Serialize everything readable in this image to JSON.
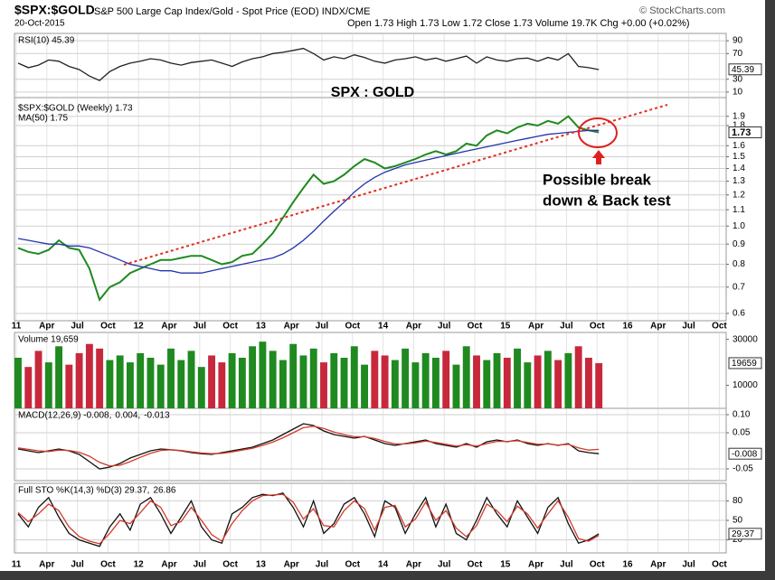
{
  "header": {
    "symbol": "$SPX:$GOLD",
    "description": "S&P 500 Large Cap Index/Gold - Spot Price (EOD) INDX/CME",
    "date": "20-Oct-2015",
    "ohlc": "Open 1.73  High 1.73  Low 1.72  Close 1.73  Volume 19.7K  Chg +0.00 (+0.02%)",
    "source": "© StockCharts.com"
  },
  "x_axis": {
    "labels": [
      "11",
      "Apr",
      "Jul",
      "Oct",
      "12",
      "Apr",
      "Jul",
      "Oct",
      "13",
      "Apr",
      "Jul",
      "Oct",
      "14",
      "Apr",
      "Jul",
      "Oct",
      "15",
      "Apr",
      "Jul",
      "Oct",
      "16",
      "Apr",
      "Jul",
      "Oct"
    ]
  },
  "chart_data": [
    {
      "type": "line",
      "title": "RSI(10) 45.39",
      "ylim": [
        0,
        100
      ],
      "yticks": [
        90,
        70,
        30,
        10
      ],
      "last_value": 45.39,
      "grid": true,
      "series": [
        {
          "name": null,
          "color": "#222222",
          "values": [
            55,
            48,
            52,
            60,
            58,
            50,
            45,
            35,
            28,
            42,
            50,
            55,
            58,
            62,
            60,
            55,
            52,
            56,
            58,
            60,
            55,
            50,
            57,
            62,
            65,
            70,
            72,
            75,
            78,
            70,
            60,
            65,
            62,
            68,
            64,
            58,
            55,
            60,
            62,
            65,
            60,
            63,
            58,
            62,
            66,
            55,
            65,
            60,
            58,
            62,
            63,
            58,
            64,
            60,
            70,
            50,
            48,
            45
          ]
        }
      ]
    },
    {
      "type": "line",
      "log": true,
      "ylim": [
        0.575,
        2.12
      ],
      "yticks": [
        0.6,
        0.7,
        0.8,
        0.9,
        {
          "value": 1,
          "label": "1.0"
        },
        1.1,
        1.2,
        1.3,
        1.4,
        1.5,
        1.6,
        1.8,
        1.9
      ],
      "last_value": 1.73,
      "grid": true,
      "annotations": [
        "SPX : GOLD",
        "Possible break",
        "down & Back test"
      ],
      "series": [
        {
          "name": "$SPX:$GOLD (Weekly) 1.73",
          "color": "#1f8a1f",
          "values": [
            0.88,
            0.86,
            0.85,
            0.87,
            0.92,
            0.88,
            0.87,
            0.78,
            0.65,
            0.7,
            0.72,
            0.76,
            0.78,
            0.8,
            0.82,
            0.82,
            0.83,
            0.84,
            0.84,
            0.82,
            0.8,
            0.81,
            0.84,
            0.85,
            0.9,
            0.96,
            1.05,
            1.15,
            1.25,
            1.35,
            1.28,
            1.3,
            1.35,
            1.42,
            1.48,
            1.45,
            1.4,
            1.42,
            1.45,
            1.48,
            1.52,
            1.55,
            1.52,
            1.55,
            1.62,
            1.6,
            1.7,
            1.75,
            1.72,
            1.78,
            1.82,
            1.8,
            1.85,
            1.82,
            1.9,
            1.78,
            1.75,
            1.73
          ]
        },
        {
          "name": "MA(50) 1.75",
          "color": "#2233aa",
          "values": [
            0.93,
            0.92,
            0.91,
            0.9,
            0.9,
            0.89,
            0.89,
            0.88,
            0.86,
            0.84,
            0.82,
            0.8,
            0.79,
            0.78,
            0.77,
            0.77,
            0.76,
            0.76,
            0.76,
            0.77,
            0.78,
            0.79,
            0.8,
            0.81,
            0.82,
            0.83,
            0.85,
            0.88,
            0.92,
            0.97,
            1.03,
            1.09,
            1.15,
            1.22,
            1.28,
            1.33,
            1.37,
            1.4,
            1.43,
            1.45,
            1.47,
            1.49,
            1.51,
            1.53,
            1.55,
            1.57,
            1.59,
            1.61,
            1.63,
            1.65,
            1.67,
            1.69,
            1.71,
            1.72,
            1.73,
            1.74,
            1.75,
            1.75
          ]
        }
      ]
    },
    {
      "type": "bar",
      "title": "Volume 19,659",
      "ylim": [
        0,
        33000
      ],
      "yticks": [
        10000,
        30000
      ],
      "last_value": 19659,
      "up_color": "#1f8a1f",
      "down_color": "#c8283c",
      "values": [
        22000,
        18000,
        25000,
        20000,
        27000,
        19000,
        24000,
        28000,
        26000,
        21000,
        23000,
        20000,
        24000,
        22000,
        19000,
        26000,
        21000,
        25000,
        18000,
        23000,
        20000,
        24000,
        22000,
        27000,
        29000,
        25000,
        21000,
        28000,
        23000,
        26000,
        20000,
        24000,
        22000,
        27000,
        19000,
        25000,
        23000,
        21000,
        26000,
        20000,
        24000,
        22000,
        25000,
        19000,
        27000,
        23000,
        21000,
        24000,
        22000,
        26000,
        20000,
        23000,
        25000,
        21000,
        24000,
        27000,
        22000,
        19659
      ]
    },
    {
      "type": "line",
      "ylim": [
        -0.0825,
        0.1175
      ],
      "yticks": [
        {
          "value": 0.1,
          "label": "0.10"
        },
        0.05,
        -0.05
      ],
      "last_value": -0.008,
      "grid": true,
      "histogram_label": "-0.013",
      "series": [
        {
          "name": "MACD(12,26,9) -0.008,",
          "color": "#111111",
          "values": [
            0.005,
            0,
            -0.005,
            0,
            0.005,
            0,
            -0.01,
            -0.03,
            -0.05,
            -0.045,
            -0.035,
            -0.02,
            -0.01,
            0,
            0.005,
            0.003,
            0,
            -0.005,
            -0.008,
            -0.01,
            -0.005,
            0,
            0.005,
            0.01,
            0.02,
            0.03,
            0.045,
            0.06,
            0.075,
            0.07,
            0.055,
            0.045,
            0.04,
            0.035,
            0.04,
            0.03,
            0.02,
            0.015,
            0.02,
            0.025,
            0.03,
            0.02,
            0.015,
            0.01,
            0.02,
            0.01,
            0.025,
            0.03,
            0.025,
            0.03,
            0.02,
            0.015,
            0.02,
            0.015,
            0.02,
            0,
            -0.005,
            -0.008
          ]
        },
        {
          "name": "0.004,",
          "color": "#d23a2a",
          "values": [
            0.008,
            0.004,
            0,
            -0.002,
            0.002,
            0.001,
            -0.004,
            -0.015,
            -0.032,
            -0.042,
            -0.04,
            -0.03,
            -0.018,
            -0.007,
            0.001,
            0.003,
            0.001,
            -0.003,
            -0.006,
            -0.008,
            -0.007,
            -0.003,
            0.002,
            0.007,
            0.015,
            0.024,
            0.036,
            0.05,
            0.064,
            0.068,
            0.062,
            0.052,
            0.045,
            0.039,
            0.039,
            0.034,
            0.026,
            0.019,
            0.019,
            0.022,
            0.027,
            0.023,
            0.018,
            0.013,
            0.017,
            0.013,
            0.02,
            0.026,
            0.026,
            0.028,
            0.023,
            0.018,
            0.019,
            0.016,
            0.018,
            0.008,
            0.002,
            0.004
          ]
        }
      ]
    },
    {
      "type": "line",
      "ylim": [
        0,
        100
      ],
      "yticks": [
        80,
        50,
        20
      ],
      "last_value": 29.37,
      "grid": true,
      "series": [
        {
          "name": "Full STO %K(14,3) %D(3) 29.37,",
          "color": "#111111",
          "values": [
            60,
            40,
            70,
            85,
            55,
            30,
            20,
            15,
            10,
            40,
            60,
            35,
            75,
            85,
            60,
            30,
            55,
            80,
            40,
            20,
            15,
            60,
            70,
            85,
            90,
            88,
            92,
            70,
            40,
            80,
            30,
            45,
            75,
            85,
            60,
            25,
            80,
            70,
            30,
            60,
            85,
            40,
            75,
            30,
            20,
            50,
            85,
            60,
            40,
            80,
            55,
            30,
            70,
            85,
            45,
            15,
            20,
            29.37
          ]
        },
        {
          "name": "26.86",
          "color": "#d23a2a",
          "values": [
            62,
            48,
            60,
            75,
            65,
            40,
            25,
            18,
            14,
            30,
            50,
            45,
            62,
            80,
            70,
            42,
            48,
            70,
            50,
            28,
            18,
            45,
            65,
            80,
            88,
            89,
            90,
            78,
            52,
            68,
            42,
            40,
            65,
            80,
            68,
            35,
            70,
            73,
            40,
            52,
            78,
            50,
            65,
            38,
            25,
            42,
            75,
            65,
            48,
            72,
            60,
            38,
            60,
            80,
            55,
            22,
            18,
            26.86
          ]
        }
      ]
    }
  ]
}
